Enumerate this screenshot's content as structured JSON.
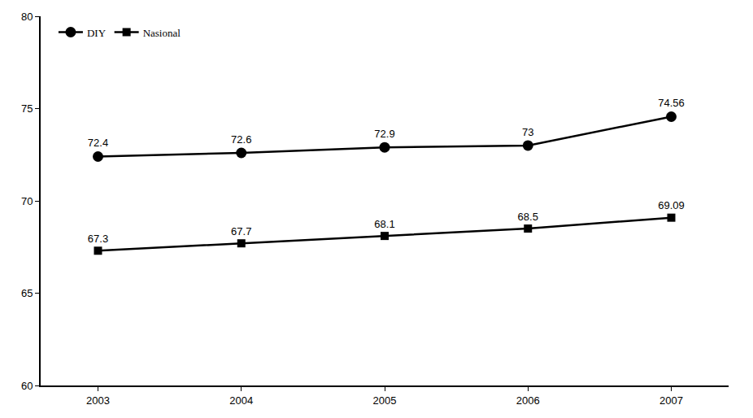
{
  "chart_data": {
    "type": "line",
    "categories": [
      "2003",
      "2004",
      "2005",
      "2006",
      "2007"
    ],
    "series": [
      {
        "name": "DIY",
        "color": "#000000",
        "marker": "circle",
        "line_style": "solid",
        "values": [
          72.4,
          72.6,
          72.9,
          73,
          74.56
        ]
      },
      {
        "name": "Nasional",
        "color": "#000000",
        "marker": "square",
        "line_style": "solid",
        "values": [
          67.3,
          67.7,
          68.1,
          68.5,
          69.09
        ]
      }
    ],
    "ylim": [
      60,
      80
    ],
    "yticks": [
      60,
      65,
      70,
      75,
      80
    ],
    "grid": false,
    "legend": "top left",
    "data_labels": true
  }
}
